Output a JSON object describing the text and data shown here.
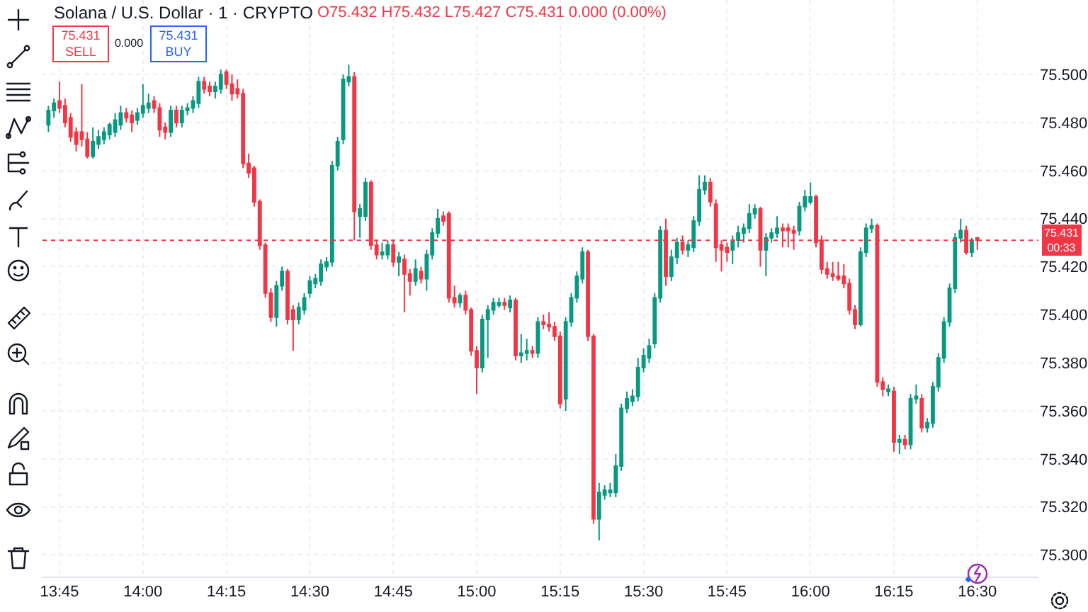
{
  "chart_data": {
    "type": "candlestick",
    "title": "Solana / U.S. Dollar · 1 · CRYPTO",
    "annotations": [
      "O75.432 H75.432 L75.427 C75.431 0.000 (0.00%)",
      "75.431",
      "SELL",
      "0.000",
      "75.431",
      "BUY",
      "00:33"
    ],
    "x": [
      13.7167,
      13.7333,
      13.75,
      13.7667,
      13.7833,
      13.8,
      13.8167,
      13.8333,
      13.85,
      13.8667,
      13.8833,
      13.9,
      13.9167,
      13.9333,
      13.95,
      13.9667,
      13.9833,
      14,
      14.0167,
      14.0333,
      14.05,
      14.0667,
      14.0833,
      14.1,
      14.1167,
      14.1333,
      14.15,
      14.1667,
      14.1833,
      14.2,
      14.2167,
      14.2333,
      14.25,
      14.2667,
      14.2833,
      14.3,
      14.3167,
      14.3333,
      14.35,
      14.3667,
      14.3833,
      14.4,
      14.4167,
      14.4333,
      14.45,
      14.4667,
      14.4833,
      14.5,
      14.5167,
      14.5333,
      14.55,
      14.5667,
      14.5833,
      14.6,
      14.6167,
      14.6333,
      14.65,
      14.6667,
      14.6833,
      14.7,
      14.7167,
      14.7333,
      14.75,
      14.7667,
      14.7833,
      14.8,
      14.8167,
      14.8333,
      14.85,
      14.8667,
      14.8833,
      14.9,
      14.9167,
      14.9333,
      14.95,
      14.9667,
      14.9833,
      15,
      15.0167,
      15.0333,
      15.05,
      15.0667,
      15.0833,
      15.1,
      15.1167,
      15.1333,
      15.15,
      15.1667,
      15.1833,
      15.2,
      15.2167,
      15.2333,
      15.25,
      15.2667,
      15.2833,
      15.3,
      15.3167,
      15.3333,
      15.35,
      15.3667,
      15.3833,
      15.4,
      15.4167,
      15.4333,
      15.45,
      15.4667,
      15.4833,
      15.5,
      15.5167,
      15.5333,
      15.55,
      15.5667,
      15.5833,
      15.6,
      15.6167,
      15.6333,
      15.65,
      15.6667,
      15.6833,
      15.7,
      15.7167,
      15.7333,
      15.75,
      15.7667,
      15.7833,
      15.8,
      15.8167,
      15.8333,
      15.85,
      15.8667,
      15.8833,
      15.9,
      15.9167,
      15.9333,
      15.95,
      15.9667,
      15.9833,
      16,
      16.0167,
      16.0333,
      16.05,
      16.0667,
      16.0833,
      16.1,
      16.1167,
      16.1333,
      16.15,
      16.1667,
      16.1833,
      16.2,
      16.2167,
      16.2333,
      16.25,
      16.2667,
      16.2833,
      16.3,
      16.3167,
      16.3333,
      16.35,
      16.3667,
      16.3833,
      16.4,
      16.4167,
      16.4333,
      16.45,
      16.4667,
      16.4833,
      16.5
    ],
    "ohlc": [
      [
        75.479,
        75.487,
        75.476,
        75.485
      ],
      [
        75.485,
        75.49,
        75.482,
        75.488
      ],
      [
        75.489,
        75.497,
        75.484,
        75.486
      ],
      [
        75.487,
        75.49,
        75.478,
        75.48
      ],
      [
        75.482,
        75.484,
        75.472,
        75.474
      ],
      [
        75.476,
        75.478,
        75.468,
        75.471
      ],
      [
        75.476,
        75.496,
        75.47,
        75.473
      ],
      [
        75.473,
        75.476,
        75.465,
        75.466
      ],
      [
        75.466,
        75.478,
        75.465,
        75.472
      ],
      [
        75.471,
        75.477,
        75.469,
        75.474
      ],
      [
        75.473,
        75.478,
        75.471,
        75.476
      ],
      [
        75.475,
        75.48,
        75.473,
        75.479
      ],
      [
        75.476,
        75.484,
        75.474,
        75.481
      ],
      [
        75.479,
        75.487,
        75.477,
        75.484
      ],
      [
        75.484,
        75.486,
        75.48,
        75.482
      ],
      [
        75.483,
        75.485,
        75.476,
        75.48
      ],
      [
        75.481,
        75.486,
        75.479,
        75.484
      ],
      [
        75.484,
        75.496,
        75.482,
        75.487
      ],
      [
        75.486,
        75.492,
        75.484,
        75.488
      ],
      [
        75.489,
        75.491,
        75.484,
        75.486
      ],
      [
        75.486,
        75.488,
        75.474,
        75.477
      ],
      [
        75.478,
        75.48,
        75.473,
        75.476
      ],
      [
        75.476,
        75.487,
        75.474,
        75.485
      ],
      [
        75.485,
        75.487,
        75.478,
        75.48
      ],
      [
        75.48,
        75.487,
        75.478,
        75.485
      ],
      [
        75.485,
        75.488,
        75.483,
        75.486
      ],
      [
        75.486,
        75.491,
        75.484,
        75.489
      ],
      [
        75.488,
        75.499,
        75.486,
        75.497
      ],
      [
        75.497,
        75.499,
        75.492,
        75.494
      ],
      [
        75.495,
        75.497,
        75.491,
        75.493
      ],
      [
        75.493,
        75.497,
        75.49,
        75.495
      ],
      [
        75.494,
        75.502,
        75.492,
        75.5
      ],
      [
        75.501,
        75.502,
        75.494,
        75.496
      ],
      [
        75.496,
        75.5,
        75.489,
        75.492
      ],
      [
        75.494,
        75.498,
        75.49,
        75.492
      ],
      [
        75.492,
        75.494,
        75.461,
        75.463
      ],
      [
        75.463,
        75.467,
        75.457,
        75.459
      ],
      [
        75.461,
        75.462,
        75.445,
        75.447
      ],
      [
        75.447,
        75.448,
        75.427,
        75.429
      ],
      [
        75.429,
        75.43,
        75.407,
        75.409
      ],
      [
        75.409,
        75.411,
        75.397,
        75.399
      ],
      [
        75.399,
        75.414,
        75.395,
        75.412
      ],
      [
        75.412,
        75.42,
        75.41,
        75.418
      ],
      [
        75.418,
        75.419,
        75.396,
        75.398
      ],
      [
        75.402,
        75.404,
        75.385,
        75.398
      ],
      [
        75.398,
        75.405,
        75.396,
        75.403
      ],
      [
        75.402,
        75.409,
        75.4,
        75.407
      ],
      [
        75.409,
        75.416,
        75.407,
        75.414
      ],
      [
        75.413,
        75.417,
        75.411,
        75.415
      ],
      [
        75.414,
        75.423,
        75.412,
        75.421
      ],
      [
        75.42,
        75.424,
        75.418,
        75.422
      ],
      [
        75.422,
        75.464,
        75.42,
        75.462
      ],
      [
        75.462,
        75.474,
        75.46,
        75.472
      ],
      [
        75.473,
        75.5,
        75.471,
        75.498
      ],
      [
        75.497,
        75.504,
        75.495,
        75.499
      ],
      [
        75.499,
        75.501,
        75.431,
        75.443
      ],
      [
        75.441,
        75.446,
        75.432,
        75.444
      ],
      [
        75.441,
        75.457,
        75.439,
        75.455
      ],
      [
        75.455,
        75.456,
        75.427,
        75.429
      ],
      [
        75.429,
        75.431,
        75.423,
        75.425
      ],
      [
        75.425,
        75.43,
        75.423,
        75.426
      ],
      [
        75.425,
        75.431,
        75.423,
        75.429
      ],
      [
        75.429,
        75.431,
        75.42,
        75.422
      ],
      [
        75.422,
        75.426,
        75.416,
        75.424
      ],
      [
        75.423,
        75.425,
        75.401,
        75.417
      ],
      [
        75.417,
        75.419,
        75.408,
        75.414
      ],
      [
        75.414,
        75.423,
        75.412,
        75.419
      ],
      [
        75.418,
        75.42,
        75.413,
        75.415
      ],
      [
        75.415,
        75.427,
        75.41,
        75.425
      ],
      [
        75.425,
        75.436,
        75.423,
        75.434
      ],
      [
        75.434,
        75.444,
        75.432,
        75.44
      ],
      [
        75.441,
        75.443,
        75.437,
        75.439
      ],
      [
        75.442,
        75.443,
        75.405,
        75.407
      ],
      [
        75.407,
        75.412,
        75.403,
        75.405
      ],
      [
        75.405,
        75.409,
        75.403,
        75.408
      ],
      [
        75.408,
        75.41,
        75.4,
        75.402
      ],
      [
        75.402,
        75.403,
        75.383,
        75.385
      ],
      [
        75.385,
        75.387,
        75.367,
        75.378
      ],
      [
        75.378,
        75.4,
        75.376,
        75.398
      ],
      [
        75.398,
        75.404,
        75.382,
        75.402
      ],
      [
        75.402,
        75.407,
        75.4,
        75.405
      ],
      [
        75.404,
        75.407,
        75.403,
        75.405
      ],
      [
        75.405,
        75.407,
        75.402,
        75.404
      ],
      [
        75.403,
        75.408,
        75.401,
        75.406
      ],
      [
        75.406,
        75.407,
        75.381,
        75.383
      ],
      [
        75.383,
        75.392,
        75.38,
        75.384
      ],
      [
        75.384,
        75.39,
        75.381,
        75.385
      ],
      [
        75.385,
        75.387,
        75.382,
        75.384
      ],
      [
        75.384,
        75.399,
        75.382,
        75.397
      ],
      [
        75.397,
        75.4,
        75.394,
        75.396
      ],
      [
        75.396,
        75.401,
        75.393,
        75.395
      ],
      [
        75.395,
        75.397,
        75.389,
        75.391
      ],
      [
        75.391,
        75.393,
        75.361,
        75.363
      ],
      [
        75.365,
        75.399,
        75.36,
        75.397
      ],
      [
        75.397,
        75.409,
        75.395,
        75.407
      ],
      [
        75.407,
        75.418,
        75.405,
        75.416
      ],
      [
        75.415,
        75.428,
        75.413,
        75.426
      ],
      [
        75.426,
        75.427,
        75.389,
        75.391
      ],
      [
        75.391,
        75.392,
        75.313,
        75.315
      ],
      [
        75.315,
        75.33,
        75.306,
        75.326
      ],
      [
        75.325,
        75.329,
        75.323,
        75.327
      ],
      [
        75.326,
        75.33,
        75.324,
        75.327
      ],
      [
        75.326,
        75.342,
        75.324,
        75.337
      ],
      [
        75.337,
        75.363,
        75.335,
        75.361
      ],
      [
        75.361,
        75.368,
        75.359,
        75.365
      ],
      [
        75.364,
        75.369,
        75.362,
        75.366
      ],
      [
        75.366,
        75.382,
        75.364,
        75.378
      ],
      [
        75.378,
        75.386,
        75.376,
        75.383
      ],
      [
        75.382,
        75.39,
        75.38,
        75.387
      ],
      [
        75.388,
        75.409,
        75.386,
        75.407
      ],
      [
        75.407,
        75.437,
        75.405,
        75.435
      ],
      [
        75.435,
        75.44,
        75.412,
        75.416
      ],
      [
        75.416,
        75.427,
        75.414,
        75.424
      ],
      [
        75.424,
        75.432,
        75.421,
        75.43
      ],
      [
        75.43,
        75.433,
        75.425,
        75.427
      ],
      [
        75.427,
        75.431,
        75.424,
        75.429
      ],
      [
        75.428,
        75.441,
        75.426,
        75.439
      ],
      [
        75.439,
        75.458,
        75.437,
        75.452
      ],
      [
        75.452,
        75.458,
        75.45,
        75.455
      ],
      [
        75.455,
        75.457,
        75.445,
        75.447
      ],
      [
        75.446,
        75.448,
        75.422,
        75.428
      ],
      [
        75.429,
        75.431,
        75.418,
        75.427
      ],
      [
        75.428,
        75.43,
        75.422,
        75.426
      ],
      [
        75.427,
        75.433,
        75.421,
        75.431
      ],
      [
        75.431,
        75.437,
        75.428,
        75.434
      ],
      [
        75.434,
        75.438,
        75.43,
        75.436
      ],
      [
        75.436,
        75.446,
        75.434,
        75.442
      ],
      [
        75.442,
        75.446,
        75.44,
        75.444
      ],
      [
        75.444,
        75.445,
        75.42,
        75.427
      ],
      [
        75.427,
        75.434,
        75.416,
        75.432
      ],
      [
        75.432,
        75.436,
        75.43,
        75.434
      ],
      [
        75.434,
        75.441,
        75.432,
        75.436
      ],
      [
        75.436,
        75.438,
        75.428,
        75.435
      ],
      [
        75.436,
        75.438,
        75.428,
        75.435
      ],
      [
        75.435,
        75.437,
        75.427,
        75.434
      ],
      [
        75.435,
        75.447,
        75.433,
        75.445
      ],
      [
        75.445,
        75.452,
        75.443,
        75.449
      ],
      [
        75.447,
        75.455,
        75.446,
        75.449
      ],
      [
        75.449,
        75.45,
        75.428,
        75.43
      ],
      [
        75.431,
        75.433,
        75.417,
        75.419
      ],
      [
        75.419,
        75.422,
        75.415,
        75.417
      ],
      [
        75.417,
        75.422,
        75.414,
        75.416
      ],
      [
        75.416,
        75.422,
        75.414,
        75.415
      ],
      [
        75.416,
        75.421,
        75.411,
        75.413
      ],
      [
        75.413,
        75.415,
        75.4,
        75.402
      ],
      [
        75.402,
        75.404,
        75.394,
        75.396
      ],
      [
        75.396,
        75.428,
        75.395,
        75.426
      ],
      [
        75.426,
        75.438,
        75.424,
        75.436
      ],
      [
        75.436,
        75.44,
        75.434,
        75.437
      ],
      [
        75.437,
        75.438,
        75.37,
        75.372
      ],
      [
        75.372,
        75.374,
        75.366,
        75.369
      ],
      [
        75.368,
        75.371,
        75.366,
        75.369
      ],
      [
        75.368,
        75.37,
        75.343,
        75.347
      ],
      [
        75.347,
        75.35,
        75.342,
        75.348
      ],
      [
        75.348,
        75.35,
        75.344,
        75.346
      ],
      [
        75.346,
        75.367,
        75.344,
        75.365
      ],
      [
        75.365,
        75.371,
        75.363,
        75.366
      ],
      [
        75.365,
        75.367,
        75.351,
        75.353
      ],
      [
        75.353,
        75.357,
        75.351,
        75.355
      ],
      [
        75.355,
        75.372,
        75.353,
        75.37
      ],
      [
        75.37,
        75.384,
        75.368,
        75.382
      ],
      [
        75.382,
        75.399,
        75.38,
        75.397
      ],
      [
        75.397,
        75.413,
        75.395,
        75.411
      ],
      [
        75.411,
        75.434,
        75.409,
        75.432
      ],
      [
        75.432,
        75.44,
        75.43,
        75.435
      ],
      [
        75.435,
        75.437,
        75.425,
        75.426
      ],
      [
        75.426,
        75.432,
        75.424,
        75.431
      ],
      [
        75.432,
        75.432,
        75.427,
        75.431
      ]
    ],
    "xlim": [
      13.699,
      16.683
    ],
    "xticks": [
      {
        "value": 13.75,
        "label": "13:45"
      },
      {
        "value": 14,
        "label": "14:00"
      },
      {
        "value": 14.25,
        "label": "14:15"
      },
      {
        "value": 14.5,
        "label": "14:30"
      },
      {
        "value": 14.75,
        "label": "14:45"
      },
      {
        "value": 15,
        "label": "15:00"
      },
      {
        "value": 15.25,
        "label": "15:15"
      },
      {
        "value": 15.5,
        "label": "15:30"
      },
      {
        "value": 15.75,
        "label": "15:45"
      },
      {
        "value": 16,
        "label": "16:00"
      },
      {
        "value": 16.25,
        "label": "16:15"
      },
      {
        "value": 16.5,
        "label": "16:30"
      }
    ],
    "ylim": [
      75.291,
      75.531
    ],
    "yticks": [
      {
        "value": 75.3,
        "label": "75.300"
      },
      {
        "value": 75.32,
        "label": "75.320"
      },
      {
        "value": 75.34,
        "label": "75.340"
      },
      {
        "value": 75.36,
        "label": "75.360"
      },
      {
        "value": 75.38,
        "label": "75.380"
      },
      {
        "value": 75.4,
        "label": "75.400"
      },
      {
        "value": 75.42,
        "label": "75.420"
      },
      {
        "value": 75.44,
        "label": "75.440"
      },
      {
        "value": 75.46,
        "label": "75.460"
      },
      {
        "value": 75.48,
        "label": "75.480"
      },
      {
        "value": 75.5,
        "label": "75.500"
      }
    ],
    "ref_lines": [
      {
        "axis": "y",
        "value": 75.431,
        "label": "75.431",
        "color": "#f23645",
        "line_style": "dotted"
      }
    ],
    "grid": true
  }
}
